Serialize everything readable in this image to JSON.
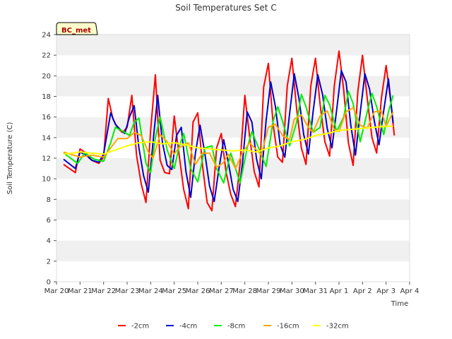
{
  "chart_data": {
    "type": "line",
    "title": "Soil Temperatures Set C",
    "xlabel": "Time",
    "ylabel": "Soil Temperature (C)",
    "badge": "BC_met",
    "ylim": [
      0,
      24
    ],
    "yticks": [
      0,
      2,
      4,
      6,
      8,
      10,
      12,
      14,
      16,
      18,
      20,
      22,
      24
    ],
    "xlim": [
      0,
      15
    ],
    "xtick_labels": [
      "Mar 20",
      "Mar 21",
      "Mar 22",
      "Mar 23",
      "Mar 24",
      "Mar 25",
      "Mar 26",
      "Mar 27",
      "Mar 28",
      "Mar 29",
      "Mar 30",
      "Mar 31",
      "Apr 1",
      "Apr 2",
      "Apr 3",
      "Apr 4"
    ],
    "x_unit": "days since Mar 20",
    "grid": "horizontal bands",
    "legend_position": "bottom",
    "series": [
      {
        "name": "-2cm",
        "color": "#ff0000",
        "x": [
          0.3,
          0.8,
          1.0,
          1.25,
          1.5,
          1.8,
          2.0,
          2.2,
          2.4,
          2.6,
          2.8,
          3.0,
          3.2,
          3.4,
          3.6,
          3.8,
          4.0,
          4.2,
          4.4,
          4.6,
          4.8,
          5.0,
          5.2,
          5.4,
          5.6,
          5.8,
          6.0,
          6.2,
          6.4,
          6.6,
          6.8,
          7.0,
          7.2,
          7.4,
          7.6,
          7.8,
          8.0,
          8.2,
          8.4,
          8.6,
          8.8,
          9.0,
          9.2,
          9.4,
          9.6,
          9.8,
          10.0,
          10.2,
          10.4,
          10.6,
          10.8,
          11.0,
          11.2,
          11.4,
          11.6,
          11.8,
          12.0,
          12.2,
          12.4,
          12.6,
          12.8,
          13.0,
          13.2,
          13.4,
          13.6,
          13.8,
          14.0,
          14.2,
          14.35
        ],
        "y": [
          11.4,
          10.6,
          12.9,
          12.5,
          11.8,
          11.5,
          12.1,
          17.8,
          15.8,
          14.9,
          14.5,
          15.0,
          18.1,
          12.3,
          9.5,
          7.7,
          14.7,
          20.1,
          11.8,
          10.6,
          10.5,
          16.1,
          12.5,
          9.0,
          7.1,
          15.5,
          16.4,
          11.3,
          7.7,
          6.9,
          13.0,
          14.4,
          10.7,
          8.5,
          7.3,
          11.5,
          18.1,
          14.2,
          10.7,
          9.2,
          18.9,
          21.2,
          15.3,
          12.1,
          11.6,
          19.0,
          21.7,
          16.8,
          13.0,
          11.4,
          19.0,
          21.7,
          17.2,
          13.6,
          12.2,
          19.0,
          22.4,
          18.6,
          13.5,
          11.3,
          18.5,
          22.0,
          17.8,
          14.0,
          12.5,
          17.8,
          21.0,
          17.5,
          14.2
        ]
      },
      {
        "name": "-4cm",
        "color": "#0000cc",
        "x": [
          0.3,
          0.8,
          1.0,
          1.25,
          1.5,
          1.8,
          2.0,
          2.3,
          2.5,
          2.7,
          2.9,
          3.1,
          3.3,
          3.5,
          3.7,
          3.9,
          4.1,
          4.3,
          4.5,
          4.7,
          4.9,
          5.1,
          5.3,
          5.5,
          5.7,
          5.9,
          6.1,
          6.3,
          6.5,
          6.7,
          6.9,
          7.1,
          7.3,
          7.5,
          7.7,
          7.9,
          8.1,
          8.3,
          8.5,
          8.7,
          8.9,
          9.1,
          9.3,
          9.5,
          9.7,
          9.9,
          10.1,
          10.3,
          10.5,
          10.7,
          10.9,
          11.1,
          11.3,
          11.5,
          11.7,
          11.9,
          12.1,
          12.3,
          12.5,
          12.7,
          12.9,
          13.1,
          13.3,
          13.5,
          13.7,
          13.9,
          14.1,
          14.3
        ],
        "y": [
          11.9,
          11.0,
          12.6,
          12.3,
          11.8,
          11.6,
          12.4,
          16.4,
          15.3,
          14.8,
          14.4,
          16.0,
          17.1,
          13.0,
          10.3,
          8.7,
          13.6,
          18.1,
          13.5,
          11.3,
          10.9,
          14.2,
          15.0,
          10.7,
          8.2,
          12.5,
          15.2,
          12.5,
          9.3,
          7.8,
          11.0,
          13.8,
          11.6,
          9.0,
          7.8,
          11.5,
          16.5,
          15.5,
          11.9,
          10.0,
          15.6,
          19.4,
          17.0,
          13.3,
          12.1,
          16.3,
          20.2,
          17.8,
          14.3,
          12.4,
          16.5,
          20.1,
          18.2,
          14.9,
          13.0,
          16.7,
          20.5,
          19.4,
          15.2,
          12.3,
          16.4,
          20.2,
          18.7,
          15.6,
          13.3,
          16.6,
          19.7,
          15.4
        ]
      },
      {
        "name": "-8cm",
        "color": "#00ee00",
        "x": [
          0.3,
          0.9,
          1.2,
          1.6,
          2.0,
          2.3,
          2.5,
          2.9,
          3.1,
          3.3,
          3.5,
          3.8,
          4.0,
          4.2,
          4.4,
          4.7,
          5.0,
          5.2,
          5.4,
          5.7,
          6.0,
          6.3,
          6.6,
          6.8,
          7.1,
          7.4,
          7.8,
          8.1,
          8.3,
          8.6,
          8.9,
          9.2,
          9.4,
          9.6,
          9.9,
          10.2,
          10.4,
          10.6,
          10.9,
          11.2,
          11.4,
          11.6,
          11.9,
          12.2,
          12.4,
          12.6,
          12.9,
          13.2,
          13.4,
          13.6,
          13.9,
          14.1,
          14.3
        ],
        "y": [
          12.5,
          11.5,
          12.5,
          11.9,
          11.7,
          13.5,
          15.0,
          14.5,
          14.2,
          15.5,
          15.9,
          11.5,
          10.6,
          14.0,
          16.0,
          12.8,
          11.0,
          13.0,
          14.4,
          11.0,
          9.7,
          13.0,
          13.2,
          11.0,
          9.6,
          12.5,
          9.6,
          13.0,
          14.6,
          12.9,
          11.2,
          15.6,
          17.0,
          15.6,
          13.2,
          15.5,
          18.2,
          17.0,
          14.5,
          15.0,
          18.1,
          17.2,
          14.6,
          16.0,
          18.5,
          17.3,
          13.6,
          16.5,
          18.3,
          17.0,
          14.3,
          16.5,
          18.1
        ]
      },
      {
        "name": "-16cm",
        "color": "#ffa500",
        "x": [
          0.3,
          1.0,
          1.5,
          2.0,
          2.3,
          2.6,
          3.0,
          3.3,
          3.6,
          3.9,
          4.1,
          4.4,
          4.7,
          5.0,
          5.2,
          5.6,
          5.9,
          6.2,
          6.5,
          6.8,
          7.1,
          7.3,
          7.6,
          7.9,
          8.2,
          8.5,
          8.7,
          9.0,
          9.3,
          9.6,
          9.9,
          10.1,
          10.4,
          10.7,
          10.9,
          11.2,
          11.5,
          11.8,
          12.0,
          12.3,
          12.6,
          12.9,
          13.2,
          13.5,
          13.8,
          14.0,
          14.3
        ],
        "y": [
          12.6,
          12.1,
          12.3,
          12.1,
          13.0,
          13.9,
          13.9,
          14.5,
          14.2,
          12.6,
          12.0,
          14.3,
          13.6,
          12.4,
          13.0,
          13.5,
          11.4,
          12.5,
          12.5,
          11.1,
          11.6,
          12.4,
          11.0,
          12.5,
          13.5,
          12.8,
          12.3,
          15.0,
          15.3,
          14.2,
          13.8,
          15.8,
          16.2,
          15.0,
          14.5,
          16.1,
          16.6,
          14.8,
          14.6,
          16.5,
          16.9,
          15.2,
          14.9,
          16.5,
          16.6,
          15.1,
          16.5
        ]
      },
      {
        "name": "-32cm",
        "color": "#ffff00",
        "x": [
          0.3,
          1.0,
          2.0,
          2.5,
          3.0,
          3.5,
          4.0,
          4.5,
          5.0,
          5.5,
          6.0,
          6.5,
          7.0,
          7.5,
          8.0,
          8.5,
          9.0,
          9.5,
          10.0,
          10.5,
          11.0,
          11.5,
          12.0,
          12.5,
          13.0,
          13.5,
          14.0,
          14.3
        ],
        "y": [
          12.4,
          12.6,
          12.4,
          12.8,
          13.2,
          13.5,
          13.6,
          13.4,
          13.5,
          13.3,
          13.0,
          12.9,
          12.8,
          12.7,
          12.8,
          12.6,
          13.0,
          13.2,
          13.6,
          13.8,
          14.2,
          14.4,
          14.7,
          14.8,
          14.9,
          15.0,
          15.1,
          15.1
        ]
      }
    ]
  }
}
